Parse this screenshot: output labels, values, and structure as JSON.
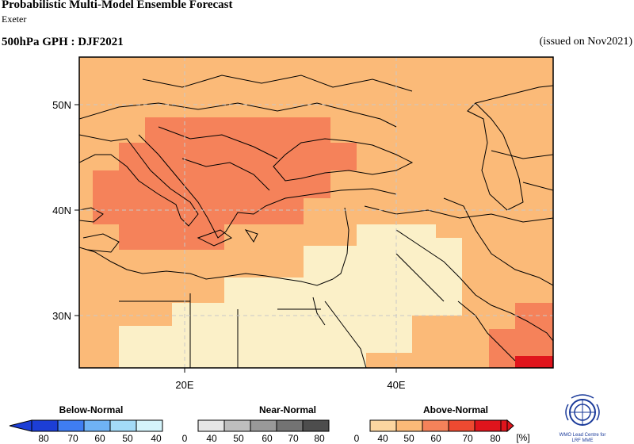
{
  "header": {
    "title": "Probabilistic Multi-Model Ensemble Forecast",
    "subtitle": "Exeter",
    "variable": "500hPa GPH : DJF2021",
    "issued": "(issued on Nov2021)"
  },
  "map": {
    "lat_labels": [
      "50N",
      "40N",
      "30N"
    ],
    "lon_labels": [
      "20E",
      "40E"
    ],
    "colors": {
      "above_40": "#fcd6a0",
      "above_50": "#fbba78",
      "above_60": "#f5825a",
      "above_70": "#ed4a31",
      "above_80": "#e0141c",
      "near_neutral": "#fbf0c8"
    }
  },
  "legend": {
    "categories": [
      "Below-Normal",
      "Near-Normal",
      "Above-Normal"
    ],
    "below_ticks": [
      "80",
      "70",
      "60",
      "50",
      "40"
    ],
    "near_ticks": [
      "0",
      "40",
      "50",
      "60",
      "70",
      "80"
    ],
    "above_ticks": [
      "0",
      "40",
      "50",
      "60",
      "70",
      "80"
    ],
    "unit": "[%]",
    "below_colors": [
      "#1c3ed6",
      "#3f7df2",
      "#6fb2f5",
      "#a3dbf7",
      "#d4f4fb"
    ],
    "near_colors": [
      "#e6e6e6",
      "#bebebe",
      "#999999",
      "#737373",
      "#4d4d4d"
    ],
    "above_colors": [
      "#fcd6a0",
      "#fbba78",
      "#f5825a",
      "#ed4a31",
      "#e0141c"
    ]
  },
  "logo": {
    "line1": "WMO Lead Centre for",
    "line2": "LRF MME"
  }
}
